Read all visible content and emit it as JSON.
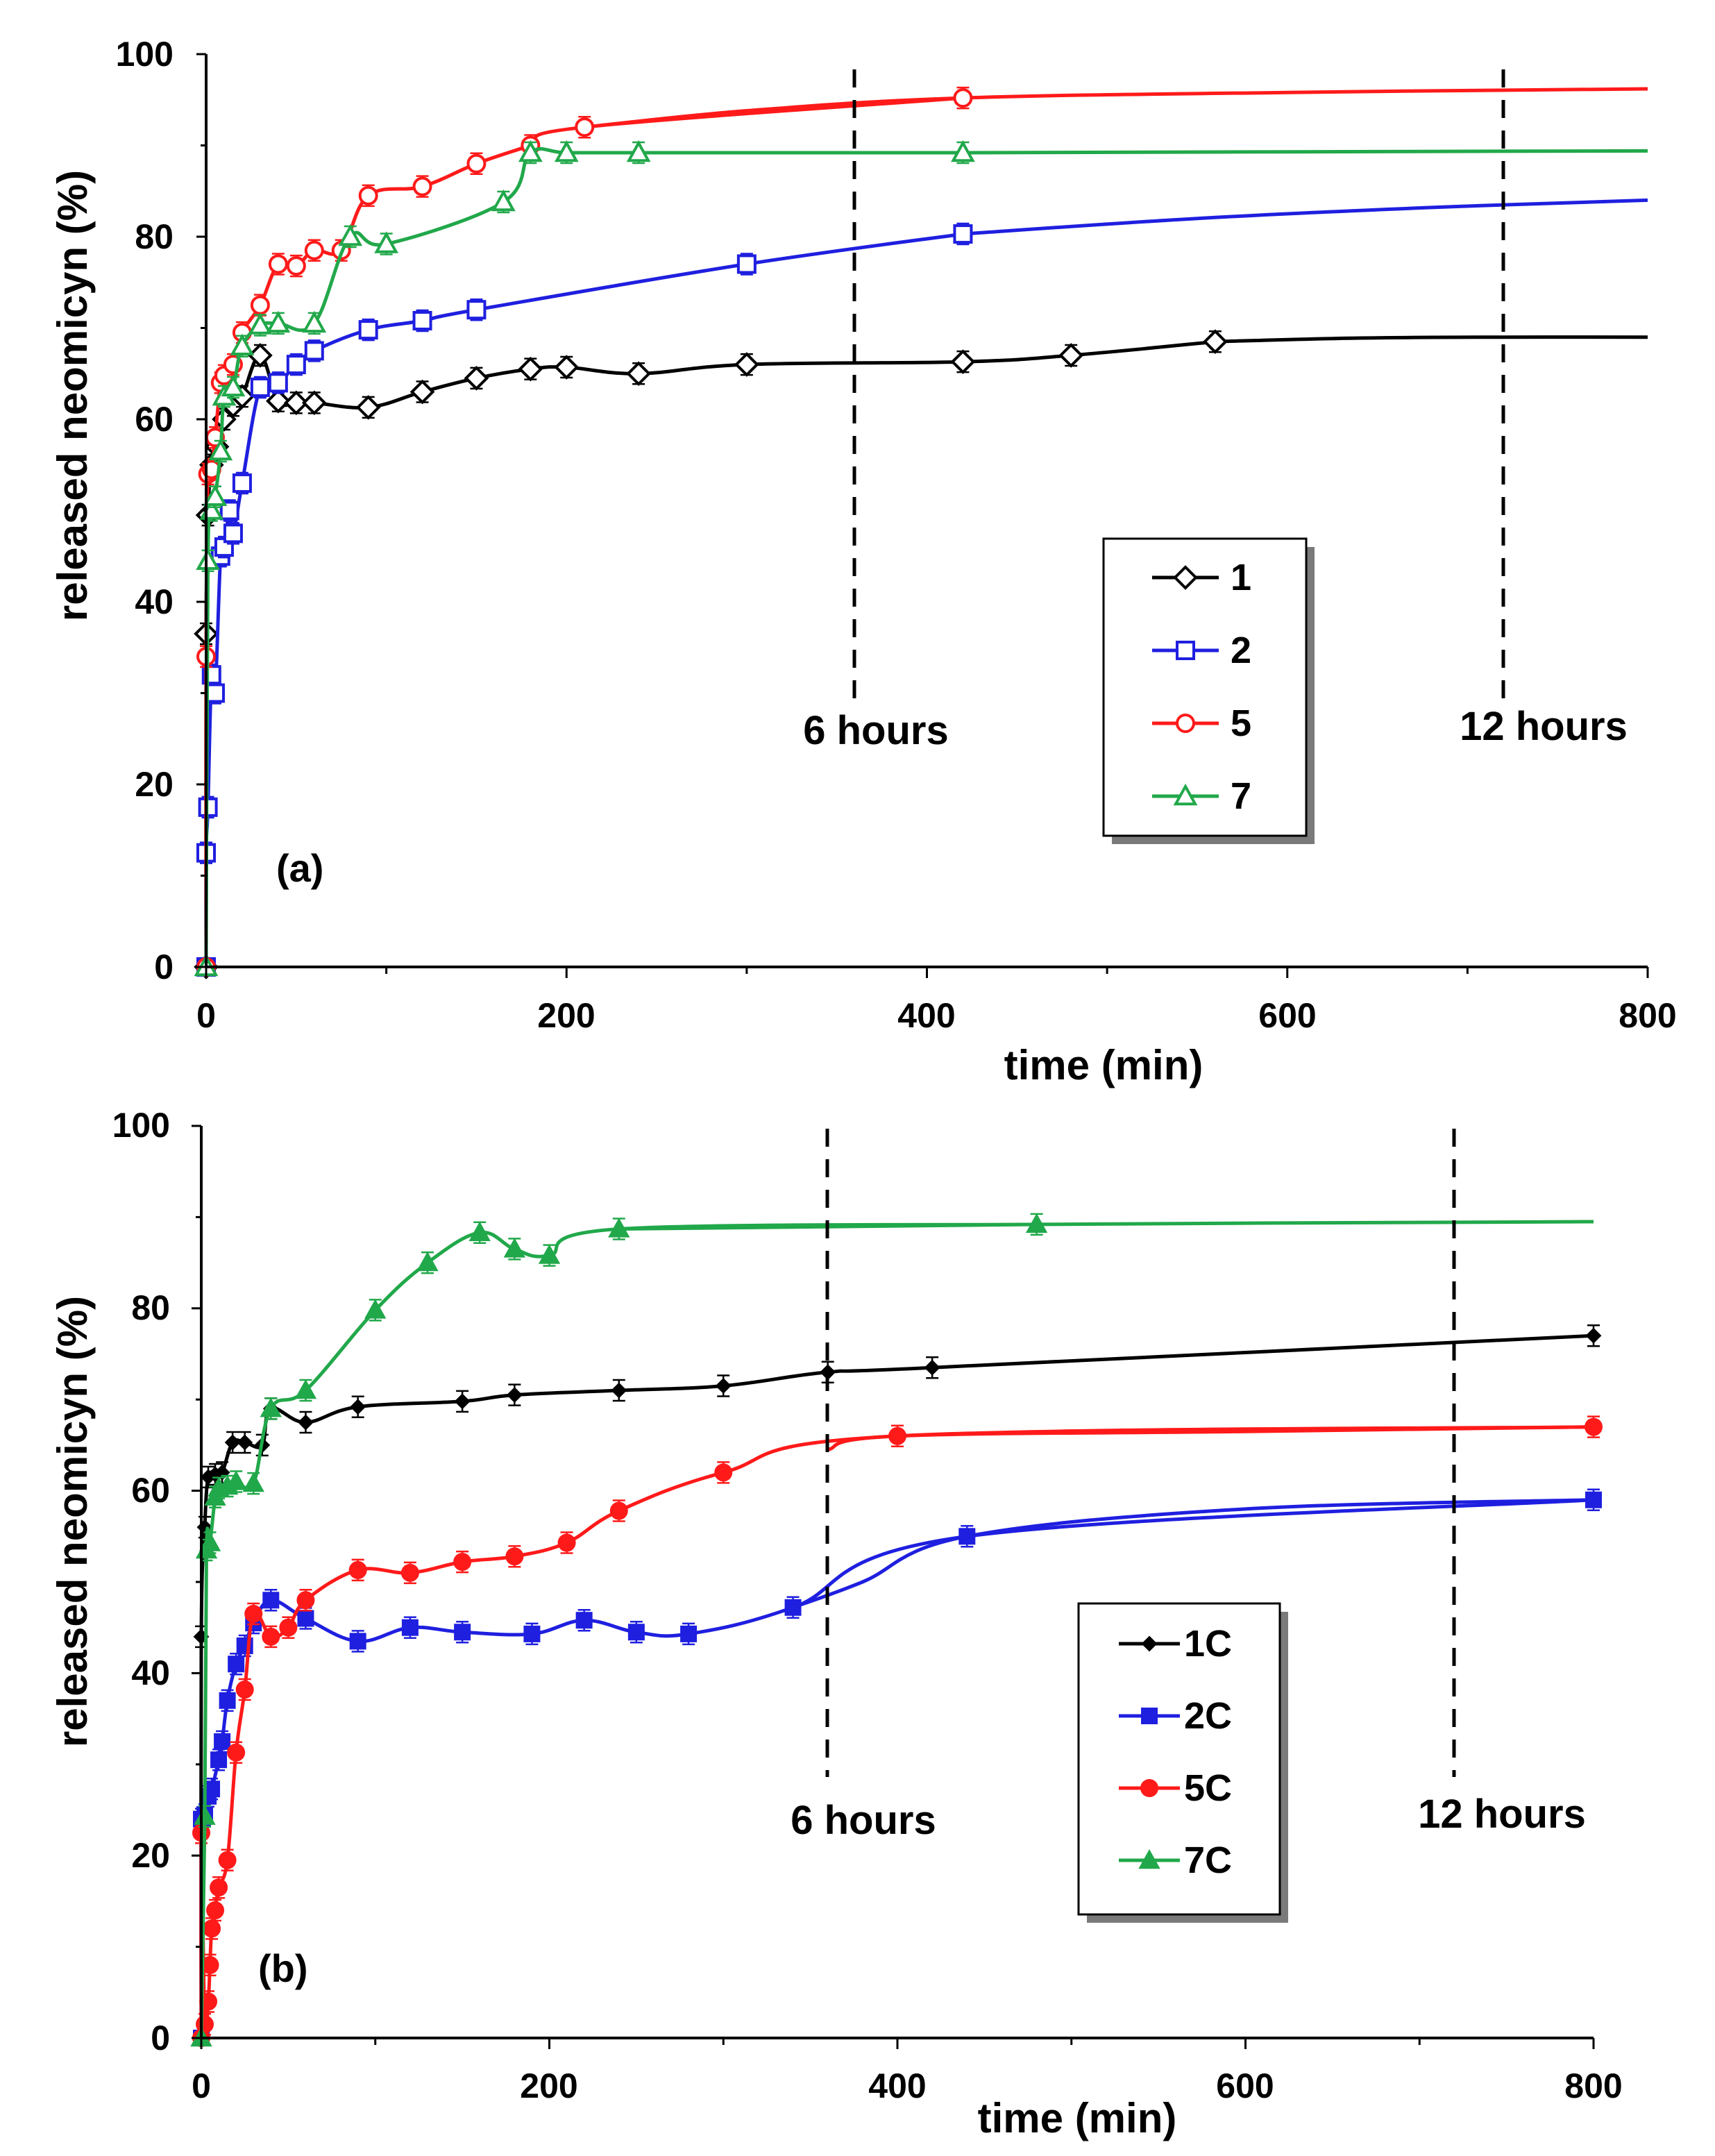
{
  "chart_data": [
    {
      "type": "line",
      "panel_label": "(a)",
      "xlabel": "time (min)",
      "ylabel": "released  neomicyn (%)",
      "xlim": [
        0,
        800
      ],
      "ylim": [
        0,
        100
      ],
      "x_ticks": [
        "0",
        "200",
        "400",
        "600",
        "800"
      ],
      "y_ticks": [
        "0",
        "20",
        "40",
        "60",
        "80",
        "100"
      ],
      "grid": false,
      "legend_position": "center-right",
      "annotations": [
        {
          "text": "6 hours",
          "x": 360
        },
        {
          "text": "12 hours",
          "x": 720
        }
      ],
      "series": [
        {
          "name": "1",
          "color": "#000000",
          "marker": "diamond-open",
          "points": [
            [
              0,
              0
            ],
            [
              0,
              36.5
            ],
            [
              1,
              49.5
            ],
            [
              3,
              55
            ],
            [
              6,
              57
            ],
            [
              10,
              60
            ],
            [
              15,
              61.5
            ],
            [
              20,
              62.5
            ],
            [
              30,
              67
            ],
            [
              40,
              62
            ],
            [
              50,
              61.8
            ],
            [
              60,
              61.8
            ],
            [
              90,
              61.3
            ],
            [
              120,
              63
            ],
            [
              150,
              64.5
            ],
            [
              180,
              65.5
            ],
            [
              200,
              65.7
            ],
            [
              240,
              65
            ],
            [
              300,
              66
            ],
            [
              420,
              66.3
            ],
            [
              480,
              67
            ],
            [
              560,
              68.5
            ]
          ],
          "trend": [
            [
              560,
              68.5
            ],
            [
              640,
              68.9
            ],
            [
              720,
              69
            ],
            [
              800,
              69
            ]
          ]
        },
        {
          "name": "2",
          "color": "#1f1fe0",
          "marker": "square-open",
          "points": [
            [
              0,
              0
            ],
            [
              0,
              12.5
            ],
            [
              1,
              17.5
            ],
            [
              3,
              32
            ],
            [
              5,
              30
            ],
            [
              8,
              45
            ],
            [
              10,
              46
            ],
            [
              13,
              50
            ],
            [
              15,
              47.5
            ],
            [
              20,
              53
            ],
            [
              30,
              63.5
            ],
            [
              40,
              64
            ],
            [
              50,
              66
            ],
            [
              60,
              67.5
            ],
            [
              90,
              69.8
            ],
            [
              120,
              70.8
            ],
            [
              150,
              72
            ],
            [
              300,
              77
            ],
            [
              420,
              80.3
            ]
          ],
          "trend": [
            [
              420,
              80.3
            ],
            [
              550,
              82
            ],
            [
              680,
              83.2
            ],
            [
              800,
              84
            ]
          ]
        },
        {
          "name": "5",
          "color": "#ff1a1a",
          "marker": "circle-open",
          "points": [
            [
              0,
              0
            ],
            [
              0,
              34
            ],
            [
              1,
              54
            ],
            [
              3,
              54.5
            ],
            [
              5,
              58
            ],
            [
              8,
              64
            ],
            [
              10,
              64.8
            ],
            [
              15,
              66
            ],
            [
              20,
              69.5
            ],
            [
              30,
              72.5
            ],
            [
              40,
              77
            ],
            [
              50,
              76.8
            ],
            [
              60,
              78.5
            ],
            [
              75,
              78.5
            ],
            [
              90,
              84.5
            ],
            [
              120,
              85.5
            ],
            [
              150,
              88
            ],
            [
              180,
              90
            ],
            [
              210,
              92
            ],
            [
              420,
              95.2
            ]
          ],
          "trend": [
            [
              210,
              92
            ],
            [
              300,
              93.8
            ],
            [
              420,
              95.2
            ],
            [
              600,
              95.8
            ],
            [
              800,
              96.2
            ]
          ]
        },
        {
          "name": "7",
          "color": "#21a84a",
          "marker": "triangle-open",
          "points": [
            [
              0,
              0
            ],
            [
              1,
              44.5
            ],
            [
              3,
              50
            ],
            [
              5,
              51.5
            ],
            [
              8,
              56.5
            ],
            [
              10,
              62.5
            ],
            [
              15,
              63.5
            ],
            [
              20,
              68
            ],
            [
              30,
              70.3
            ],
            [
              40,
              70.5
            ],
            [
              60,
              70.5
            ],
            [
              80,
              80
            ],
            [
              100,
              79.2
            ],
            [
              165,
              83.8
            ],
            [
              180,
              89.2
            ],
            [
              200,
              89.2
            ],
            [
              240,
              89.2
            ],
            [
              420,
              89.2
            ]
          ],
          "trend": [
            [
              420,
              89.2
            ],
            [
              600,
              89.3
            ],
            [
              800,
              89.4
            ]
          ]
        }
      ],
      "legend": [
        "1",
        "2",
        "5",
        "7"
      ]
    },
    {
      "type": "line",
      "panel_label": "(b)",
      "xlabel": "time (min)",
      "ylabel": "released neomicyn  (%)",
      "xlim": [
        0,
        800
      ],
      "ylim": [
        0,
        100
      ],
      "x_ticks": [
        "0",
        "200",
        "400",
        "600",
        "800"
      ],
      "y_ticks": [
        "0",
        "20",
        "40",
        "60",
        "80",
        "100"
      ],
      "grid": false,
      "legend_position": "center-right",
      "annotations": [
        {
          "text": "6 hours",
          "x": 360
        },
        {
          "text": "12 hours",
          "x": 720
        }
      ],
      "series": [
        {
          "name": "1C",
          "color": "#000000",
          "marker": "diamond-filled",
          "points": [
            [
              0,
              0
            ],
            [
              0,
              44
            ],
            [
              2,
              56
            ],
            [
              4,
              61.5
            ],
            [
              8,
              61.8
            ],
            [
              12,
              62
            ],
            [
              18,
              65.3
            ],
            [
              25,
              65.3
            ],
            [
              35,
              65
            ],
            [
              40,
              69
            ],
            [
              60,
              67.5
            ],
            [
              90,
              69.2
            ],
            [
              150,
              69.8
            ],
            [
              180,
              70.5
            ],
            [
              240,
              71
            ],
            [
              300,
              71.5
            ],
            [
              360,
              73
            ],
            [
              420,
              73.5
            ],
            [
              800,
              77
            ]
          ]
        },
        {
          "name": "2C",
          "color": "#1f1fe0",
          "marker": "square-filled",
          "points": [
            [
              0,
              0
            ],
            [
              0,
              24
            ],
            [
              2,
              24.5
            ],
            [
              4,
              26.5
            ],
            [
              6,
              27.3
            ],
            [
              10,
              30.5
            ],
            [
              12,
              32.5
            ],
            [
              15,
              37
            ],
            [
              20,
              41
            ],
            [
              25,
              43
            ],
            [
              30,
              45.5
            ],
            [
              40,
              48
            ],
            [
              60,
              46
            ],
            [
              90,
              43.5
            ],
            [
              120,
              45
            ],
            [
              150,
              44.5
            ],
            [
              190,
              44.3
            ],
            [
              220,
              45.8
            ],
            [
              250,
              44.5
            ],
            [
              280,
              44.3
            ],
            [
              340,
              47.2
            ],
            [
              440,
              55
            ],
            [
              800,
              59
            ]
          ],
          "trend": [
            [
              340,
              47.2
            ],
            [
              380,
              50
            ],
            [
              440,
              55
            ],
            [
              600,
              58
            ],
            [
              800,
              59
            ]
          ]
        },
        {
          "name": "5C",
          "color": "#ff1a1a",
          "marker": "circle-filled",
          "points": [
            [
              0,
              0
            ],
            [
              0,
              22.5
            ],
            [
              2,
              1.5
            ],
            [
              4,
              4
            ],
            [
              5,
              8
            ],
            [
              6,
              12
            ],
            [
              8,
              14
            ],
            [
              10,
              16.5
            ],
            [
              15,
              19.5
            ],
            [
              20,
              31.3
            ],
            [
              25,
              38.2
            ],
            [
              30,
              46.5
            ],
            [
              40,
              44
            ],
            [
              50,
              45
            ],
            [
              60,
              48
            ],
            [
              90,
              51.3
            ],
            [
              120,
              51
            ],
            [
              150,
              52.2
            ],
            [
              180,
              52.8
            ],
            [
              210,
              54.3
            ],
            [
              240,
              57.8
            ],
            [
              300,
              62
            ],
            [
              400,
              66
            ],
            [
              800,
              67
            ]
          ],
          "trend": [
            [
              360,
              64.5
            ],
            [
              400,
              66
            ],
            [
              600,
              66.5
            ],
            [
              800,
              67
            ]
          ]
        },
        {
          "name": "7C",
          "color": "#21a84a",
          "marker": "triangle-filled",
          "points": [
            [
              0,
              0
            ],
            [
              2,
              24.3
            ],
            [
              3,
              53.5
            ],
            [
              5,
              54.3
            ],
            [
              8,
              59.3
            ],
            [
              10,
              60.3
            ],
            [
              15,
              60.5
            ],
            [
              20,
              61
            ],
            [
              30,
              60.8
            ],
            [
              40,
              69
            ],
            [
              60,
              71
            ],
            [
              100,
              79.8
            ],
            [
              130,
              85
            ],
            [
              160,
              88.3
            ],
            [
              180,
              86.5
            ],
            [
              200,
              85.8
            ],
            [
              240,
              88.7
            ],
            [
              480,
              89.2
            ]
          ],
          "trend": [
            [
              240,
              88.7
            ],
            [
              480,
              89.2
            ],
            [
              800,
              89.5
            ]
          ]
        }
      ],
      "legend": [
        "1C",
        "2C",
        "5C",
        "7C"
      ]
    }
  ]
}
